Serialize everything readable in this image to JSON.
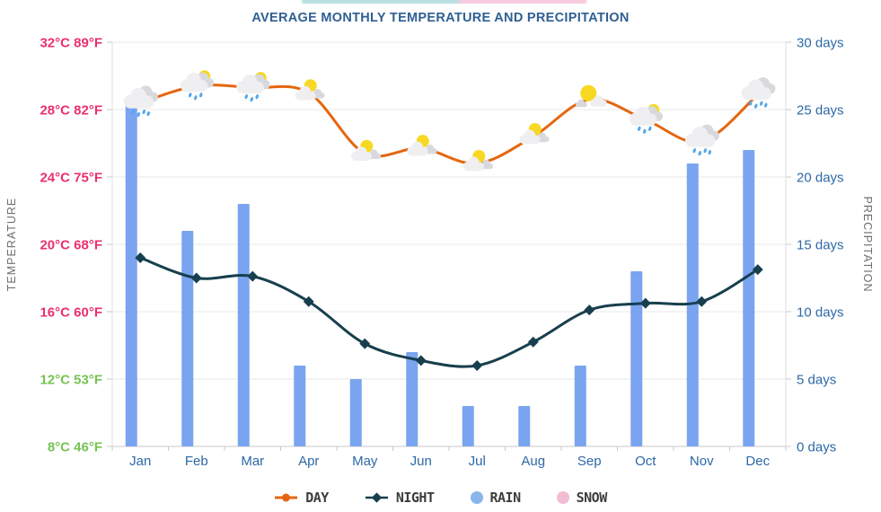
{
  "page": {
    "subtitle": "AVERAGE MONTHLY TEMPERATURE AND PRECIPITATION",
    "clipped_top_title": ""
  },
  "colors": {
    "subtitle": "#2f5f92",
    "axis_title": "#6f6f6f",
    "month_label": "#2d68a6",
    "days_label": "#2d68a6",
    "temp_label_pink": "#ea2f6e",
    "temp_label_green": "#77c353",
    "grid": "#e8e8e8",
    "axis_line": "#c9c9c9",
    "day_line": "#e5660f",
    "night_line": "#173f4e",
    "rain_bar": "#7aa4ef",
    "snow": "#f2bcd2",
    "legend_text": "#3d3d3d",
    "icon_sun": "#f7d823",
    "icon_cloud": "#efeff2",
    "icon_cloud_back": "#d9d9dd",
    "icon_drop": "#56a7e8"
  },
  "chart_data": {
    "type": "combo",
    "title": "AVERAGE MONTHLY TEMPERATURE AND PRECIPITATION",
    "categories": [
      "Jan",
      "Feb",
      "Mar",
      "Apr",
      "May",
      "Jun",
      "Jul",
      "Aug",
      "Sep",
      "Oct",
      "Nov",
      "Dec"
    ],
    "series": [
      {
        "name": "DAY",
        "chart": "line",
        "unit": "°C",
        "color": "#e5660f",
        "values": [
          28.4,
          29.4,
          29.3,
          29.0,
          25.4,
          25.7,
          24.8,
          26.4,
          28.6,
          27.4,
          26.1,
          28.9
        ]
      },
      {
        "name": "NIGHT",
        "chart": "line",
        "unit": "°C",
        "color": "#173f4e",
        "values": [
          19.2,
          18.0,
          18.1,
          16.6,
          14.1,
          13.1,
          12.8,
          14.2,
          16.1,
          16.5,
          16.6,
          18.5
        ]
      },
      {
        "name": "RAIN",
        "chart": "bar",
        "unit": "days",
        "color": "#7aa4ef",
        "values": [
          25.5,
          16,
          18,
          6,
          5,
          7,
          3,
          3,
          6,
          13,
          21,
          22
        ]
      },
      {
        "name": "SNOW",
        "chart": "bar",
        "unit": "days",
        "color": "#f2bcd2",
        "values": [
          0,
          0,
          0,
          0,
          0,
          0,
          0,
          0,
          0,
          0,
          0,
          0
        ]
      }
    ],
    "weather_icons": [
      "rain-cloud",
      "sun-cloud-rain",
      "sun-cloud-rain",
      "sun-cloud",
      "sun-cloud",
      "sun-cloud",
      "sun-cloud",
      "sun-cloud",
      "sun-big-cloud",
      "sun-cloud-rain",
      "rain-cloud",
      "rain-cloud"
    ],
    "y_left": {
      "title": "TEMPERATURE",
      "range_c": [
        8,
        32
      ],
      "ticks": [
        {
          "label": "32°C 89°F",
          "color": "#ea2f6e"
        },
        {
          "label": "28°C 82°F",
          "color": "#ea2f6e"
        },
        {
          "label": "24°C 75°F",
          "color": "#ea2f6e"
        },
        {
          "label": "20°C 68°F",
          "color": "#ea2f6e"
        },
        {
          "label": "16°C 60°F",
          "color": "#ea2f6e"
        },
        {
          "label": "12°C 53°F",
          "color": "#77c353"
        },
        {
          "label": "8°C 46°F",
          "color": "#77c353"
        }
      ]
    },
    "y_right": {
      "title": "PRECIPITATION",
      "range_days": [
        0,
        30
      ],
      "ticks": [
        "30 days",
        "25 days",
        "20 days",
        "15 days",
        "10 days",
        "5 days",
        "0 days"
      ]
    },
    "grid": true,
    "legend_position": "bottom"
  }
}
